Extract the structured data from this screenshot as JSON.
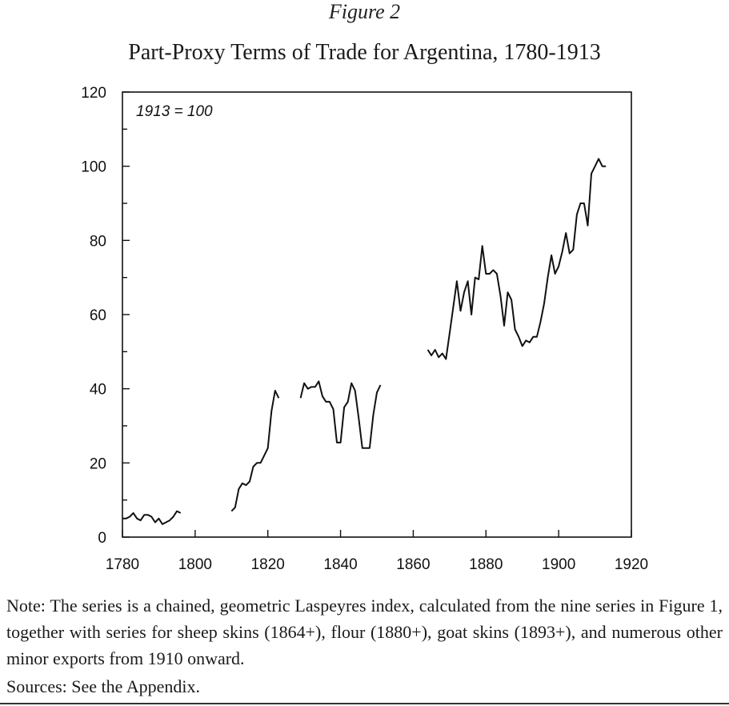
{
  "figure_label": "Figure 2",
  "note": "Note: The series is a chained, geometric Laspeyres index, calculated from the nine series in Figure 1, together with series for sheep skins (1864+), flour (1880+), goat skins (1893+), and numerous other minor exports from 1910 onward.",
  "sources": "Sources: See the Appendix.",
  "chart_data": {
    "type": "line",
    "title": "Part-Proxy Terms of Trade for Argentina, 1780-1913",
    "annotation": "1913 = 100",
    "xlabel": "",
    "ylabel": "",
    "xlim": [
      1780,
      1920
    ],
    "ylim": [
      0,
      120
    ],
    "x_ticks": [
      1780,
      1800,
      1820,
      1840,
      1860,
      1880,
      1900,
      1920
    ],
    "y_ticks": [
      0,
      20,
      40,
      60,
      80,
      100,
      120
    ],
    "grid": false,
    "line_color": "#111111",
    "segments": [
      {
        "x": [
          1780,
          1781,
          1782,
          1783,
          1784,
          1785,
          1786,
          1787,
          1788,
          1789,
          1790,
          1791,
          1792,
          1793,
          1794,
          1795,
          1796
        ],
        "y": [
          5,
          5,
          5.5,
          6.5,
          5,
          4.5,
          6,
          6,
          5.5,
          4,
          5,
          3.5,
          4,
          4.5,
          5.5,
          7,
          6.5
        ]
      },
      {
        "x": [
          1810,
          1811,
          1812,
          1813,
          1814,
          1815,
          1816,
          1817,
          1818,
          1819,
          1820,
          1821,
          1822,
          1823
        ],
        "y": [
          7,
          8,
          13,
          14.5,
          14,
          15,
          19,
          20,
          20,
          22,
          24,
          34,
          39.5,
          37.5
        ]
      },
      {
        "x": [
          1829,
          1830,
          1831,
          1832,
          1833,
          1834,
          1835,
          1836,
          1837,
          1838,
          1839,
          1840,
          1841,
          1842,
          1843,
          1844,
          1845,
          1846,
          1847,
          1848,
          1849,
          1850,
          1851
        ],
        "y": [
          37.5,
          41.5,
          40,
          40.5,
          40.5,
          42,
          38,
          36.5,
          36.5,
          34.5,
          25.5,
          25.5,
          35,
          36.5,
          41.5,
          39.5,
          32,
          24,
          24,
          24,
          33,
          39,
          41
        ]
      },
      {
        "x": [
          1864,
          1865,
          1866,
          1867,
          1868,
          1869,
          1870,
          1871,
          1872,
          1873,
          1874,
          1875,
          1876,
          1877,
          1878,
          1879,
          1880,
          1881,
          1882,
          1883,
          1884,
          1885,
          1886,
          1887,
          1888,
          1889,
          1890,
          1891,
          1892,
          1893,
          1894,
          1895,
          1896,
          1897,
          1898,
          1899,
          1900,
          1901,
          1902,
          1903,
          1904,
          1905,
          1906,
          1907,
          1908,
          1909,
          1910,
          1911,
          1912,
          1913
        ],
        "y": [
          50.5,
          49,
          50.5,
          48.5,
          49.5,
          48,
          55,
          62,
          69,
          61,
          66,
          69,
          60,
          70,
          69.5,
          78.5,
          71,
          71,
          72,
          71,
          65,
          57,
          66,
          64,
          56,
          54,
          51.5,
          53,
          52.5,
          54,
          54,
          58,
          63,
          70,
          76,
          71,
          73,
          77,
          82,
          76.5,
          77.5,
          87,
          90,
          90,
          84,
          98,
          100,
          102,
          100,
          100
        ]
      }
    ]
  }
}
